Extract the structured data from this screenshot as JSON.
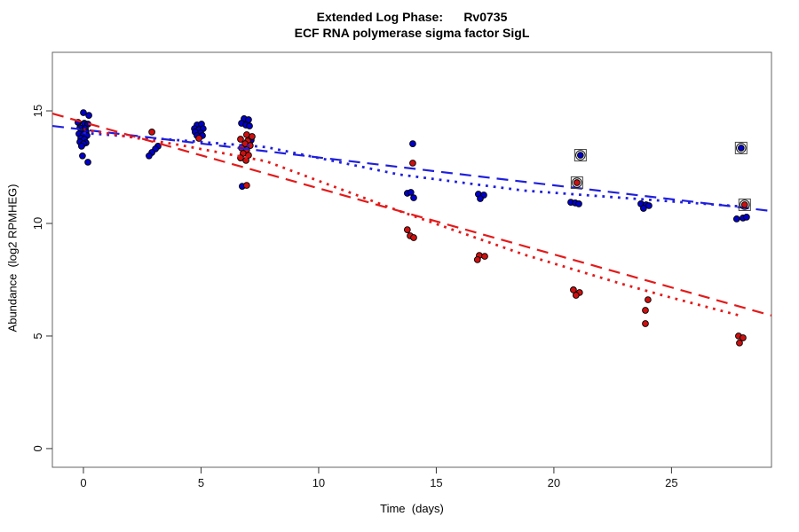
{
  "figure": {
    "title_line1": "Extended Log Phase:      Rv0735",
    "title_line2": "ECF RNA polymerase sigma factor SigL",
    "x_axis_label": "Time  (days)",
    "y_axis_label": "Abundance  (log2 RPMHEG)"
  },
  "chart_data": {
    "type": "scatter",
    "title": "Extended Log Phase: Rv0735 — ECF RNA polymerase sigma factor SigL",
    "xlabel": "Time (days)",
    "ylabel": "Abundance (log2 RPMHEG)",
    "x_range": [
      -1.32,
      29.25
    ],
    "y_range": [
      -0.83,
      17.6
    ],
    "x_ticks": [
      0,
      5,
      10,
      15,
      20,
      25
    ],
    "y_ticks": [
      0,
      5,
      10,
      15
    ],
    "grid": false,
    "legend": "none",
    "series": [
      {
        "name": "blue-condition",
        "color": "#0000C8",
        "points": [
          [
            0,
            14.92
          ],
          [
            0.23,
            14.8
          ],
          [
            -0.23,
            14.49
          ],
          [
            0.04,
            14.45
          ],
          [
            0.19,
            14.41
          ],
          [
            -0.15,
            14.25
          ],
          [
            0.08,
            14.21
          ],
          [
            -0.08,
            14.09
          ],
          [
            0.11,
            14.06
          ],
          [
            -0.19,
            13.98
          ],
          [
            0,
            13.94
          ],
          [
            0.15,
            13.9
          ],
          [
            -0.11,
            13.78
          ],
          [
            0.04,
            13.74
          ],
          [
            -0.15,
            13.62
          ],
          [
            0.11,
            13.58
          ],
          [
            0,
            13.54
          ],
          [
            -0.08,
            13.43
          ],
          [
            -0.04,
            13.0
          ],
          [
            0.19,
            12.72
          ],
          [
            3.17,
            13.43
          ],
          [
            3.06,
            13.31
          ],
          [
            2.91,
            13.15
          ],
          [
            2.79,
            13.0
          ],
          [
            4.83,
            14.37
          ],
          [
            5.02,
            14.41
          ],
          [
            4.72,
            14.21
          ],
          [
            4.91,
            14.17
          ],
          [
            5.09,
            14.21
          ],
          [
            4.75,
            14.06
          ],
          [
            4.98,
            14.02
          ],
          [
            4.83,
            13.9
          ],
          [
            5.06,
            13.9
          ],
          [
            6.83,
            14.65
          ],
          [
            7.02,
            14.61
          ],
          [
            6.72,
            14.45
          ],
          [
            6.91,
            14.37
          ],
          [
            7.06,
            14.33
          ],
          [
            7.13,
            13.7
          ],
          [
            7.02,
            13.5
          ],
          [
            6.75,
            11.65
          ],
          [
            14,
            13.54
          ],
          [
            13.77,
            11.34
          ],
          [
            13.92,
            11.38
          ],
          [
            14.04,
            11.14
          ],
          [
            16.79,
            11.3
          ],
          [
            17.02,
            11.26
          ],
          [
            16.87,
            11.1
          ],
          [
            20.72,
            10.94
          ],
          [
            20.91,
            10.91
          ],
          [
            21.06,
            10.87
          ],
          [
            23.7,
            10.87
          ],
          [
            23.92,
            10.83
          ],
          [
            24.04,
            10.79
          ],
          [
            23.81,
            10.67
          ],
          [
            27.77,
            10.2
          ],
          [
            28.04,
            10.24
          ],
          [
            28.19,
            10.28
          ]
        ]
      },
      {
        "name": "red-condition",
        "color": "#CD1010",
        "points": [
          [
            2.91,
            14.06
          ],
          [
            4.91,
            13.78
          ],
          [
            6.94,
            13.94
          ],
          [
            7.17,
            13.86
          ],
          [
            6.68,
            13.74
          ],
          [
            6.98,
            13.66
          ],
          [
            6.87,
            13.54
          ],
          [
            7.09,
            13.46
          ],
          [
            6.72,
            13.35
          ],
          [
            6.94,
            13.27
          ],
          [
            6.79,
            13.11
          ],
          [
            7.02,
            13.03
          ],
          [
            6.68,
            12.91
          ],
          [
            6.91,
            12.8
          ],
          [
            6.94,
            11.69
          ],
          [
            14,
            12.68
          ],
          [
            13.77,
            9.72
          ],
          [
            13.89,
            9.45
          ],
          [
            14.04,
            9.37
          ],
          [
            16.83,
            8.58
          ],
          [
            17.06,
            8.54
          ],
          [
            16.75,
            8.39
          ],
          [
            20.83,
            7.05
          ],
          [
            21.09,
            6.93
          ],
          [
            20.94,
            6.81
          ],
          [
            24,
            6.61
          ],
          [
            23.89,
            6.14
          ],
          [
            23.89,
            5.55
          ],
          [
            27.85,
            5.0
          ],
          [
            28.04,
            4.92
          ],
          [
            27.89,
            4.69
          ]
        ]
      }
    ],
    "flagged_points": [
      {
        "series": "blue-condition",
        "color": "#0000C8",
        "point": [
          21.13,
          13.03
        ]
      },
      {
        "series": "blue-condition",
        "color": "#0000C8",
        "point": [
          27.96,
          13.35
        ]
      },
      {
        "series": "red-condition",
        "color": "#CD1010",
        "point": [
          20.98,
          11.81
        ]
      },
      {
        "series": "red-condition",
        "color": "#CD1010",
        "point": [
          28.11,
          10.83
        ]
      }
    ],
    "ring_markers": [
      {
        "series": "blue-condition",
        "point": [
          0,
          14.33
        ]
      }
    ],
    "fit_lines": [
      {
        "name": "blue-linear-fit",
        "style": "longdash",
        "color": "#2020DC",
        "points": [
          [
            -1.32,
            14.33
          ],
          [
            29.25,
            10.55
          ]
        ]
      },
      {
        "name": "red-linear-fit",
        "style": "longdash",
        "color": "#E41A1A",
        "points": [
          [
            -1.32,
            14.88
          ],
          [
            29.25,
            5.91
          ]
        ]
      },
      {
        "name": "blue-smooth-fit",
        "style": "dotted",
        "color": "#2020DC",
        "points": [
          [
            0,
            14.02
          ],
          [
            4,
            13.7
          ],
          [
            7.77,
            13.39
          ],
          [
            13.43,
            12.17
          ],
          [
            18.72,
            11.46
          ],
          [
            22.87,
            11.14
          ],
          [
            28,
            10.75
          ]
        ]
      },
      {
        "name": "red-smooth-fit",
        "style": "dotted",
        "color": "#E41A1A",
        "points": [
          [
            0,
            14.17
          ],
          [
            4,
            13.5
          ],
          [
            7.77,
            12.76
          ],
          [
            13.43,
            10.55
          ],
          [
            18.72,
            8.62
          ],
          [
            22.87,
            7.32
          ],
          [
            24.75,
            6.77
          ],
          [
            27.89,
            5.91
          ]
        ]
      }
    ]
  }
}
